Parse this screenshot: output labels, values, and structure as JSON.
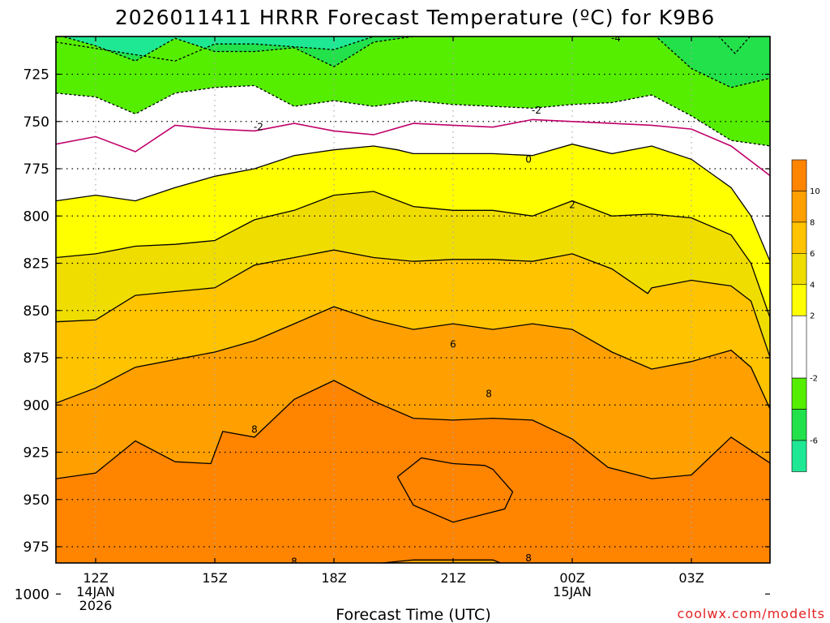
{
  "chart_data": {
    "type": "heatmap",
    "title": "2026011411 HRRR Forecast Temperature (ºC) for K9B6",
    "xlabel": "Forecast Time (UTC)",
    "ylabel": "",
    "credit": "coolwx.com/modelts",
    "x_ticks": [
      {
        "hour": 0,
        "label": "12Z",
        "label2": "14JAN",
        "label3": "2026"
      },
      {
        "hour": 3,
        "label": "15Z"
      },
      {
        "hour": 6,
        "label": "18Z"
      },
      {
        "hour": 9,
        "label": "21Z"
      },
      {
        "hour": 12,
        "label": "00Z",
        "label2": "15JAN"
      },
      {
        "hour": 15,
        "label": "03Z"
      }
    ],
    "xlim": [
      -1,
      17
    ],
    "y_ticks": [
      725,
      750,
      775,
      800,
      825,
      850,
      875,
      900,
      925,
      950,
      975,
      1000
    ],
    "ylim_hPa": [
      702,
      1005
    ],
    "ground_level_hPa": 1002,
    "colorbar": {
      "bins": [
        {
          "from": -8,
          "to": -6,
          "color": "#1fe894"
        },
        {
          "from": -6,
          "to": -4,
          "color": "#22e14a"
        },
        {
          "from": -4,
          "to": -2,
          "color": "#55ee00"
        },
        {
          "from": -2,
          "to": 2,
          "color": "#ffffff"
        },
        {
          "from": 2,
          "to": 4,
          "color": "#ffff00"
        },
        {
          "from": 4,
          "to": 6,
          "color": "#f0dd00"
        },
        {
          "from": 6,
          "to": 8,
          "color": "#ffc300"
        },
        {
          "from": 8,
          "to": 10,
          "color": "#ffa000"
        },
        {
          "from": 10,
          "to": 12,
          "color": "#ff8400"
        }
      ],
      "tick_labels": [
        "-6",
        "-2",
        "2",
        "4",
        "6",
        "8",
        "10"
      ],
      "tick_values": [
        -6,
        -2,
        2,
        4,
        6,
        8,
        10
      ]
    },
    "contour_levels": [
      -6,
      -4,
      -2,
      0,
      2,
      4,
      6,
      8,
      10
    ],
    "contour_labels": [
      {
        "text": "-4",
        "hour": 13.1,
        "hPa": 706
      },
      {
        "text": "-2",
        "hour": 11.1,
        "hPa": 744
      },
      {
        "text": "-2",
        "hour": 4.1,
        "hPa": 753
      },
      {
        "text": "0",
        "hour": 10.9,
        "hPa": 770
      },
      {
        "text": "2",
        "hour": 12.0,
        "hPa": 794
      },
      {
        "text": "6",
        "hour": 9.0,
        "hPa": 868
      },
      {
        "text": "8",
        "hour": 9.9,
        "hPa": 894
      },
      {
        "text": "8",
        "hour": 4.0,
        "hPa": 913
      },
      {
        "text": "8",
        "hour": 5.0,
        "hPa": 983
      },
      {
        "text": "8",
        "hour": 10.9,
        "hPa": 981
      }
    ],
    "series": [
      {
        "level": -6,
        "hours": [
          -1,
          2,
          3,
          4,
          6,
          7,
          8,
          9,
          10,
          11,
          12,
          13,
          14,
          15,
          16,
          16.6,
          17
        ],
        "hPa": [
          708,
          718,
          709,
          709,
          712,
          705,
          703,
          702,
          702,
          702,
          702,
          702,
          702,
          702,
          702,
          702,
          702
        ]
      },
      {
        "level": -6,
        "hours": [
          15.6,
          16.1,
          16.6
        ],
        "hPa": [
          703,
          714,
          702
        ]
      },
      {
        "level": -4,
        "hours": [
          -1,
          0,
          1,
          2,
          3,
          4,
          5,
          6,
          7,
          8,
          9,
          10,
          11,
          12,
          13,
          14,
          15,
          16,
          17
        ],
        "hPa": [
          704,
          710,
          718,
          706,
          713,
          713,
          711,
          721,
          708,
          705,
          705,
          704,
          704,
          704,
          703,
          703,
          722,
          732,
          727
        ]
      },
      {
        "level": -2,
        "hours": [
          -1,
          0,
          1,
          2,
          3,
          4,
          5,
          6,
          7,
          8,
          9,
          10,
          11,
          12,
          13,
          14,
          15,
          16,
          17
        ],
        "hPa": [
          735,
          737,
          746,
          735,
          732,
          731,
          742,
          739,
          742,
          739,
          741,
          742,
          743,
          741,
          740,
          736,
          747,
          760,
          763
        ]
      },
      {
        "level": 0,
        "hours": [
          -1,
          0,
          1,
          2,
          3,
          4,
          5,
          6,
          7,
          8,
          9,
          10,
          11,
          12,
          13,
          14,
          15,
          16,
          17
        ],
        "hPa": [
          762,
          758,
          766,
          752,
          754,
          755,
          751,
          755,
          757,
          751,
          752,
          753,
          749,
          750,
          751,
          752,
          754,
          763,
          779
        ]
      },
      {
        "level": 2,
        "hours": [
          -1,
          0,
          1,
          2,
          3,
          4,
          5,
          6,
          7,
          7.6,
          8,
          9,
          10,
          11,
          12,
          13,
          14,
          15,
          16,
          16.5,
          17
        ],
        "hPa": [
          792,
          789,
          792,
          785,
          779,
          775,
          768,
          765,
          763,
          765,
          767,
          767,
          767,
          768,
          762,
          767,
          763,
          770,
          785,
          800,
          825
        ]
      },
      {
        "level": 4,
        "hours": [
          -1,
          0,
          1,
          2,
          3,
          4,
          5,
          6,
          7,
          8,
          9,
          10,
          11,
          12,
          13,
          14,
          15,
          16,
          16.5,
          17
        ],
        "hPa": [
          822,
          820,
          816,
          815,
          813,
          802,
          797,
          789,
          787,
          795,
          797,
          797,
          800,
          792,
          800,
          799,
          801,
          810,
          825,
          855
        ]
      },
      {
        "level": 6,
        "hours": [
          -1,
          0,
          1,
          2,
          3,
          4,
          5,
          6,
          7,
          8,
          9,
          10,
          11,
          12,
          13,
          13.9,
          14,
          15,
          16,
          16.5,
          17
        ],
        "hPa": [
          856,
          855,
          842,
          840,
          838,
          826,
          822,
          818,
          822,
          824,
          823,
          823,
          824,
          820,
          828,
          841,
          838,
          834,
          837,
          845,
          876
        ]
      },
      {
        "level": 8,
        "hours": [
          -1,
          0,
          1,
          2,
          3,
          4,
          5,
          6,
          7,
          8,
          9,
          10,
          11,
          12,
          13,
          14,
          15,
          16,
          16.5,
          17
        ],
        "hPa": [
          899,
          891,
          880,
          876,
          872,
          866,
          857,
          848,
          855,
          860,
          857,
          860,
          857,
          860,
          872,
          881,
          877,
          871,
          880,
          903
        ]
      },
      {
        "level": 10,
        "hours": [
          -1,
          0,
          1,
          2,
          2.9,
          3.2,
          4,
          5,
          6,
          7,
          8,
          9,
          10,
          11,
          12,
          12.9,
          14,
          15,
          16,
          17
        ],
        "hPa": [
          939,
          936,
          919,
          930,
          931,
          914,
          917,
          897,
          887,
          898,
          907,
          908,
          907,
          908,
          918,
          933,
          939,
          937,
          917,
          931
        ]
      },
      {
        "level": 10,
        "hours": [
          7.6,
          8.2,
          9.0,
          9.8,
          10.0,
          10.5,
          10.3,
          9.0,
          8.0,
          7.6
        ],
        "hPa": [
          938,
          928,
          931,
          932,
          934,
          946,
          955,
          962,
          953,
          938
        ]
      },
      {
        "level": 8,
        "hours": [
          2.2,
          3,
          4,
          5,
          6,
          7,
          8,
          9,
          10,
          11,
          12,
          13,
          14,
          15,
          16,
          16.5,
          17
        ],
        "hPa": [
          1003,
          1000,
          992,
          986,
          985,
          984,
          982,
          982,
          982,
          990,
          985,
          988,
          988,
          985,
          997,
          1000,
          1002
        ]
      }
    ]
  }
}
